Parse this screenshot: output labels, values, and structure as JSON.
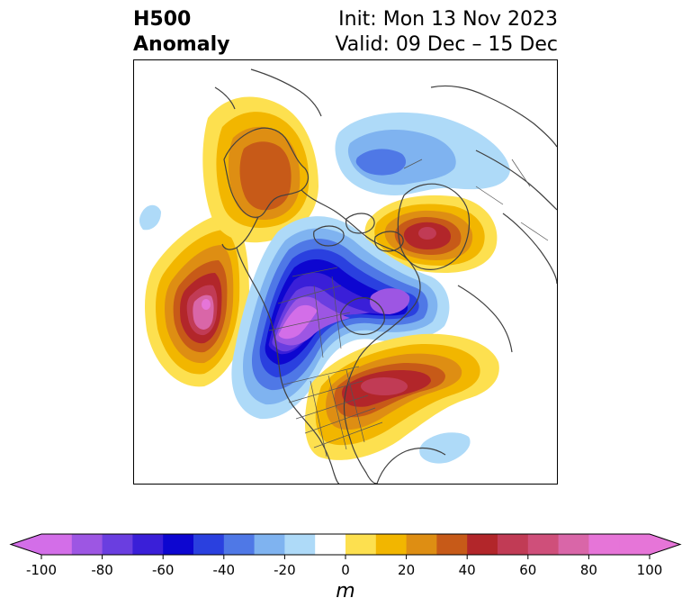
{
  "title": {
    "left_line1": "H500",
    "left_line2": "Anomaly",
    "right_line1": "Init: Mon 13 Nov 2023",
    "right_line2": "Valid: 09 Dec – 15 Dec"
  },
  "colorbar": {
    "unit": "m",
    "min": -100,
    "max": 100,
    "step": 10,
    "ticks": [
      -100,
      -80,
      -60,
      -40,
      -20,
      0,
      20,
      40,
      60,
      80,
      100
    ],
    "tick_labels": [
      "-100",
      "-80",
      "-60",
      "-40",
      "-20",
      "0",
      "20",
      "40",
      "60",
      "80",
      "100"
    ],
    "colors": [
      "#d36ee8",
      "#9d56e3",
      "#6a3ee0",
      "#3a1fd8",
      "#0d06d0",
      "#2a40df",
      "#4f78e6",
      "#7fb3f0",
      "#aedaf8",
      "#ffffff",
      "#fde04f",
      "#f2b600",
      "#de8e13",
      "#c75a18",
      "#b2262a",
      "#c13b55",
      "#cf4f7a",
      "#d966a8",
      "#e675d8"
    ]
  },
  "map": {
    "region": "North America",
    "anomaly_centers": [
      {
        "sign": "positive",
        "value": 60,
        "lon": -150,
        "lat": 40
      },
      {
        "sign": "positive",
        "value": 40,
        "lon": -125,
        "lat": 68
      },
      {
        "sign": "positive",
        "value": 50,
        "lon": -15,
        "lat": 70
      },
      {
        "sign": "positive",
        "value": 60,
        "lon": -80,
        "lat": 42
      },
      {
        "sign": "negative",
        "value": -90,
        "lon": -120,
        "lat": 52
      },
      {
        "sign": "negative",
        "value": -70,
        "lon": -85,
        "lat": 60
      },
      {
        "sign": "negative",
        "value": -40,
        "lon": 40,
        "lat": 75
      }
    ]
  }
}
